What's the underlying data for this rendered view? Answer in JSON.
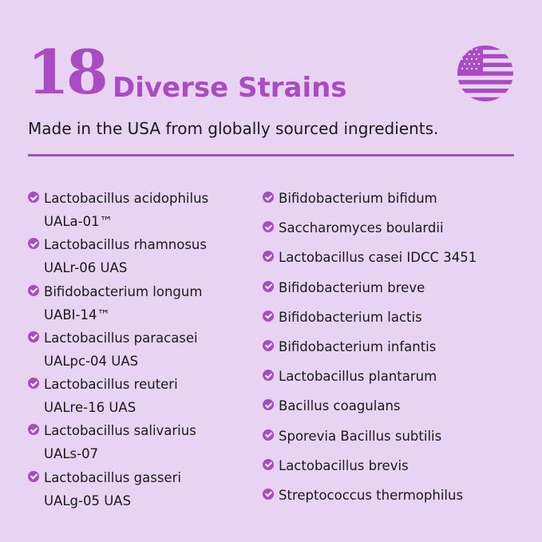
{
  "header": {
    "count": "18",
    "title": "Diverse Strains",
    "subtitle": "Made in the USA from globally sourced ingredients.",
    "flag_icon": "us-flag-icon"
  },
  "colors": {
    "accent": "#a94cc3",
    "background": "#e9d3f2"
  },
  "left_strains": [
    {
      "name": "Lactobacillus acidophilus",
      "code": "UALa-01™"
    },
    {
      "name": "Lactobacillus rhamnosus",
      "code": "UALr-06 UAS"
    },
    {
      "name": "Bifidobacterium longum",
      "code": "UABI-14™"
    },
    {
      "name": "Lactobacillus paracasei",
      "code": "UALpc-04 UAS"
    },
    {
      "name": "Lactobacillus reuteri",
      "code": "UALre-16 UAS"
    },
    {
      "name": "Lactobacillus salivarius",
      "code": "UALs-07"
    },
    {
      "name": "Lactobacillus gasseri",
      "code": "UALg-05 UAS"
    }
  ],
  "right_strains": [
    "Bifidobacterium bifidum",
    "Saccharomyces boulardii",
    "Lactobacillus casei IDCC 3451",
    "Bifidobacterium breve",
    "Bifidobacterium lactis",
    "Bifidobacterium infantis",
    "Lactobacillus plantarum",
    "Bacillus coagulans",
    "Sporevia Bacillus subtilis",
    "Lactobacillus brevis",
    "Streptococcus thermophilus"
  ]
}
